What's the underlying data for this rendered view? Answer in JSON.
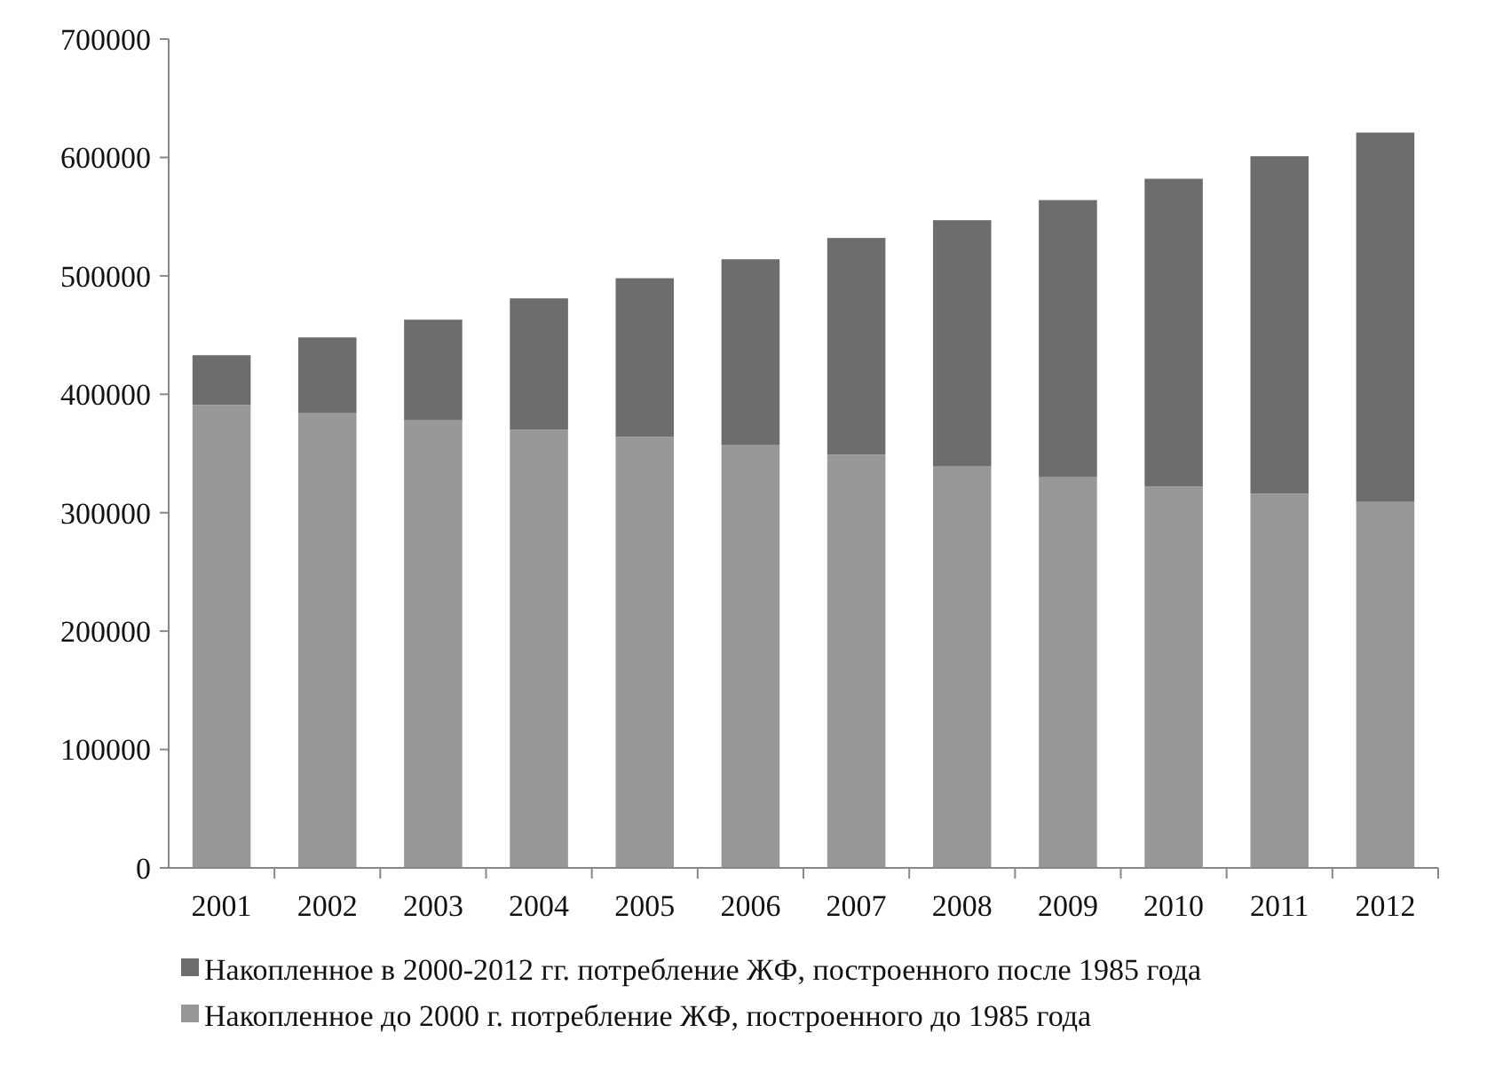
{
  "chart_data": {
    "type": "bar",
    "stacked": true,
    "categories": [
      "2001",
      "2002",
      "2003",
      "2004",
      "2005",
      "2006",
      "2007",
      "2008",
      "2009",
      "2010",
      "2011",
      "2012"
    ],
    "series": [
      {
        "name": "Накопленное до 2000 г. потребление ЖФ, построенного до 1985 года",
        "color": "#989898",
        "values": [
          391000,
          384000,
          378000,
          370000,
          364000,
          357000,
          349000,
          339000,
          330000,
          322000,
          316000,
          309000
        ]
      },
      {
        "name": "Накопленное в 2000-2012 гг. потребление ЖФ, построенного после 1985 года",
        "color": "#6d6d6d",
        "values": [
          42000,
          64000,
          85000,
          111000,
          134000,
          157000,
          183000,
          208000,
          234000,
          260000,
          285000,
          312000
        ]
      }
    ],
    "ylim": [
      0,
      700000
    ],
    "yticks": [
      0,
      100000,
      200000,
      300000,
      400000,
      500000,
      600000,
      700000
    ],
    "grid": false,
    "legend": "bottom"
  }
}
